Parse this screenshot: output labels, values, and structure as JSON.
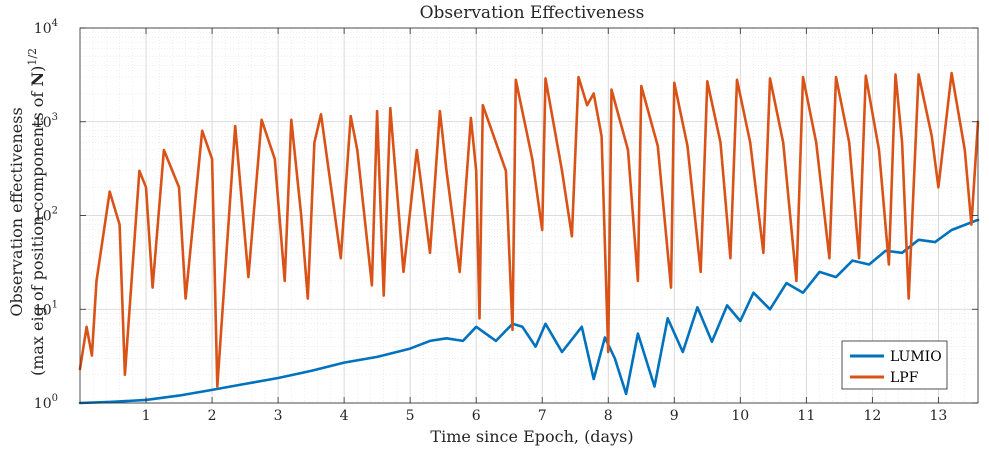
{
  "chart_data": {
    "type": "line",
    "title": "Observation Effectiveness",
    "xlabel": "Time since Epoch, (days)",
    "ylabel_line1": "Observation effectiveness",
    "ylabel_line2_prefix": "(max eig of position components of ",
    "ylabel_line2_symbol": "N",
    "ylabel_line2_suffix": ")",
    "ylabel_line2_exponent": "1/2",
    "xlim": [
      0,
      13.6
    ],
    "ylim": [
      1,
      10000
    ],
    "yscale": "log",
    "grid": true,
    "minor_grid": true,
    "legend_position": "bottom-right",
    "x_ticks": [
      1,
      2,
      3,
      4,
      5,
      6,
      7,
      8,
      9,
      10,
      11,
      12,
      13
    ],
    "x_tick_labels": [
      "1",
      "2",
      "3",
      "4",
      "5",
      "6",
      "7",
      "8",
      "9",
      "10",
      "11",
      "12",
      "13"
    ],
    "y_ticks": [
      {
        "value": 1,
        "base": "10",
        "exp": "0"
      },
      {
        "value": 10,
        "base": "10",
        "exp": "1"
      },
      {
        "value": 100,
        "base": "10",
        "exp": "2"
      },
      {
        "value": 1000,
        "base": "10",
        "exp": "3"
      },
      {
        "value": 10000,
        "base": "10",
        "exp": "4"
      }
    ],
    "series": [
      {
        "name": "LUMIO",
        "color": "#0072BD",
        "x": [
          0,
          0.5,
          1.0,
          1.5,
          2.0,
          2.5,
          3.0,
          3.5,
          4.0,
          4.5,
          5.0,
          5.3,
          5.55,
          5.8,
          6.0,
          6.3,
          6.55,
          6.7,
          6.9,
          7.05,
          7.3,
          7.6,
          7.78,
          7.95,
          8.1,
          8.27,
          8.45,
          8.7,
          8.9,
          9.13,
          9.35,
          9.57,
          9.8,
          10.0,
          10.2,
          10.45,
          10.7,
          10.95,
          11.2,
          11.45,
          11.7,
          11.95,
          12.2,
          12.45,
          12.7,
          12.95,
          13.2,
          13.6
        ],
        "y": [
          1.0,
          1.03,
          1.08,
          1.2,
          1.38,
          1.6,
          1.85,
          2.2,
          2.7,
          3.1,
          3.8,
          4.6,
          4.9,
          4.6,
          6.5,
          4.6,
          7.0,
          6.5,
          4.0,
          7.0,
          3.5,
          6.5,
          1.8,
          5.0,
          3.0,
          1.25,
          5.5,
          1.5,
          8.0,
          3.5,
          10.5,
          4.5,
          11.0,
          7.5,
          15.0,
          10.0,
          19.0,
          15.0,
          25.0,
          22.0,
          33.0,
          30.0,
          42.0,
          40.0,
          55.0,
          52.0,
          70.0,
          90.0
        ]
      },
      {
        "name": "LPF",
        "color": "#D95319",
        "x": [
          0.0,
          0.1,
          0.18,
          0.25,
          0.45,
          0.6,
          0.68,
          0.9,
          1.0,
          1.1,
          1.27,
          1.5,
          1.6,
          1.85,
          2.0,
          2.08,
          2.35,
          2.55,
          2.75,
          2.95,
          3.1,
          3.2,
          3.35,
          3.45,
          3.55,
          3.65,
          3.95,
          4.1,
          4.2,
          4.42,
          4.5,
          4.6,
          4.7,
          4.9,
          5.1,
          5.3,
          5.45,
          5.55,
          5.75,
          5.92,
          6.0,
          6.05,
          6.1,
          6.45,
          6.55,
          6.6,
          6.85,
          7.0,
          7.05,
          7.3,
          7.45,
          7.55,
          7.68,
          7.78,
          7.9,
          8.0,
          8.05,
          8.3,
          8.45,
          8.5,
          8.75,
          8.95,
          9.0,
          9.2,
          9.4,
          9.5,
          9.7,
          9.85,
          9.95,
          10.15,
          10.35,
          10.45,
          10.65,
          10.85,
          10.95,
          11.15,
          11.35,
          11.45,
          11.65,
          11.8,
          11.9,
          12.1,
          12.25,
          12.35,
          12.45,
          12.55,
          12.7,
          12.9,
          13.0,
          13.2,
          13.4,
          13.5,
          13.6
        ],
        "y": [
          2.3,
          6.5,
          3.2,
          20,
          180,
          80,
          2.0,
          300,
          200,
          17,
          500,
          200,
          13,
          800,
          400,
          1.5,
          900,
          22,
          1050,
          400,
          20,
          1050,
          100,
          13,
          600,
          1200,
          35,
          1150,
          500,
          18,
          1300,
          14,
          1400,
          25,
          500,
          40,
          1300,
          300,
          25,
          1100,
          300,
          8,
          1500,
          300,
          6,
          2800,
          400,
          70,
          2900,
          300,
          60,
          3000,
          1500,
          2000,
          700,
          3.5,
          2200,
          500,
          20,
          2400,
          550,
          17,
          2600,
          550,
          25,
          2700,
          600,
          35,
          2800,
          600,
          40,
          2900,
          600,
          20,
          3000,
          600,
          35,
          3000,
          600,
          35,
          3100,
          500,
          30,
          3200,
          600,
          13,
          3200,
          700,
          200,
          3300,
          500,
          80,
          1000
        ]
      }
    ]
  }
}
